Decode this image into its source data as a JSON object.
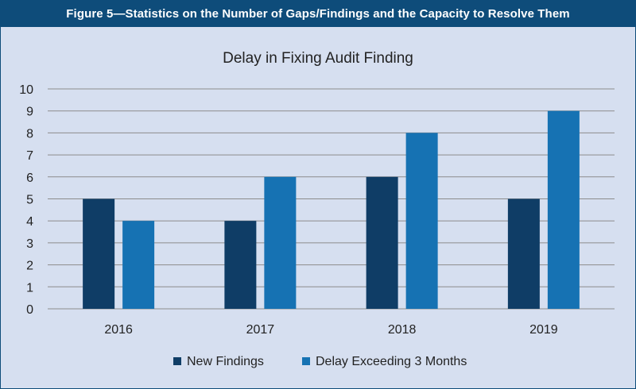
{
  "figure_caption": "Figure 5—Statistics on the Number of Gaps/Findings and the Capacity to Resolve Them",
  "colors": {
    "header_bg": "#0e4c7a",
    "panel_bg": "#d6dff0",
    "series_new": "#0f3d66",
    "series_delay": "#1672b3",
    "grid": "#8c8c8c"
  },
  "chart_data": {
    "type": "bar",
    "title": "Delay in Fixing Audit Finding",
    "categories": [
      "2016",
      "2017",
      "2018",
      "2019"
    ],
    "series": [
      {
        "name": "New Findings",
        "values": [
          5,
          4,
          6,
          5
        ]
      },
      {
        "name": "Delay Exceeding 3 Months",
        "values": [
          4,
          6,
          8,
          9
        ]
      }
    ],
    "ylim": [
      0,
      10
    ],
    "yticks": [
      "0",
      "1",
      "2",
      "3",
      "4",
      "5",
      "6",
      "7",
      "8",
      "9",
      "10"
    ],
    "grid": true,
    "legend": "bottom"
  }
}
